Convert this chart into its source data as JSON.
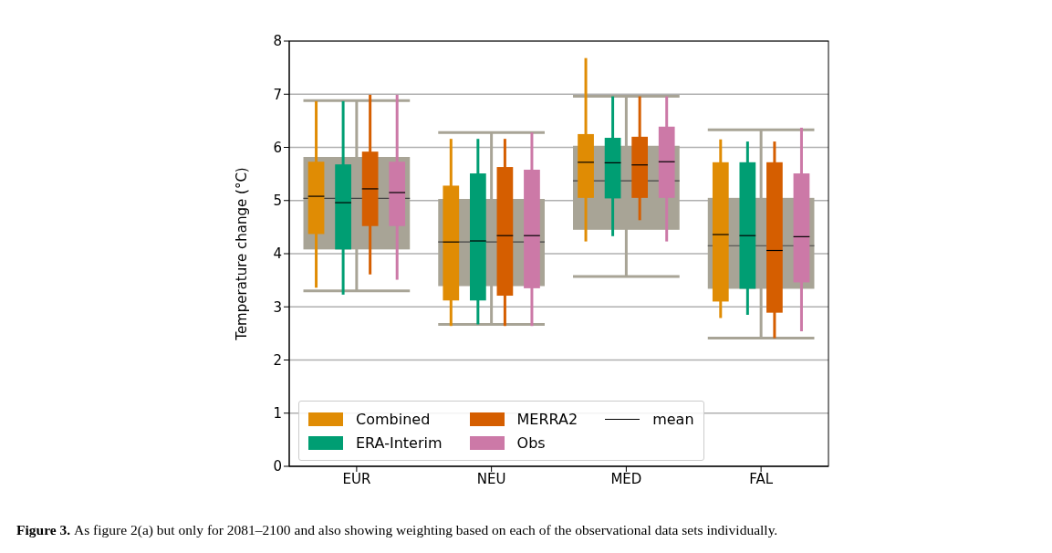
{
  "chart_data": {
    "type": "box",
    "ylabel": "Temperature change (°C)",
    "categories": [
      "EUR",
      "NEU",
      "MED",
      "FAL"
    ],
    "ylim": [
      0,
      8
    ],
    "yticks": [
      0,
      1,
      2,
      3,
      4,
      5,
      6,
      7,
      8
    ],
    "grid": "y",
    "legend": "bottom left",
    "annotations": [
      "Figure 3.",
      "As figure 2(a) but only for 2081–2100 and also showing weighting based on each of the observational data sets individually.",
      "mean"
    ],
    "series": [
      {
        "color": "#a8a496",
        "boxes": [
          {
            "low": 3.3,
            "q1": 4.08,
            "median": 5.04,
            "q3": 5.82,
            "high": 6.88
          },
          {
            "low": 2.67,
            "q1": 3.39,
            "median": 4.22,
            "q3": 5.03,
            "high": 6.28
          },
          {
            "low": 3.57,
            "q1": 4.45,
            "median": 5.37,
            "q3": 6.03,
            "high": 6.96
          },
          {
            "low": 2.41,
            "q1": 3.34,
            "median": 4.15,
            "q3": 5.05,
            "high": 6.33
          }
        ]
      },
      {
        "name": "Combined",
        "color": "#e08c04",
        "boxes": [
          {
            "low": 3.36,
            "q1": 4.37,
            "median": 5.08,
            "q3": 5.73,
            "high": 6.87
          },
          {
            "low": 2.64,
            "q1": 3.12,
            "median": 4.22,
            "q3": 5.28,
            "high": 6.16
          },
          {
            "low": 4.23,
            "q1": 5.05,
            "median": 5.72,
            "q3": 6.25,
            "high": 7.68
          },
          {
            "low": 2.79,
            "q1": 3.1,
            "median": 4.36,
            "q3": 5.72,
            "high": 6.15
          }
        ]
      },
      {
        "name": "ERA-Interim",
        "color": "#009e73",
        "boxes": [
          {
            "low": 3.23,
            "q1": 4.08,
            "median": 4.96,
            "q3": 5.68,
            "high": 6.87
          },
          {
            "low": 2.67,
            "q1": 3.12,
            "median": 4.24,
            "q3": 5.51,
            "high": 6.16
          },
          {
            "low": 4.33,
            "q1": 5.04,
            "median": 5.71,
            "q3": 6.18,
            "high": 6.96
          },
          {
            "low": 2.85,
            "q1": 3.34,
            "median": 4.34,
            "q3": 5.72,
            "high": 6.11
          }
        ]
      },
      {
        "name": "MERRA2",
        "color": "#d55e00",
        "boxes": [
          {
            "low": 3.61,
            "q1": 4.52,
            "median": 5.22,
            "q3": 5.92,
            "high": 6.99
          },
          {
            "low": 2.64,
            "q1": 3.21,
            "median": 4.34,
            "q3": 5.63,
            "high": 6.16
          },
          {
            "low": 4.63,
            "q1": 5.05,
            "median": 5.67,
            "q3": 6.2,
            "high": 6.96
          },
          {
            "low": 2.41,
            "q1": 2.89,
            "median": 4.06,
            "q3": 5.72,
            "high": 6.11
          }
        ]
      },
      {
        "name": "Obs",
        "color": "#cc79a7",
        "boxes": [
          {
            "low": 3.51,
            "q1": 4.52,
            "median": 5.15,
            "q3": 5.73,
            "high": 6.99
          },
          {
            "low": 2.64,
            "q1": 3.35,
            "median": 4.34,
            "q3": 5.58,
            "high": 6.28
          },
          {
            "low": 4.23,
            "q1": 5.05,
            "median": 5.73,
            "q3": 6.39,
            "high": 6.96
          },
          {
            "low": 2.54,
            "q1": 3.46,
            "median": 4.32,
            "q3": 5.51,
            "high": 6.37
          }
        ]
      }
    ]
  }
}
